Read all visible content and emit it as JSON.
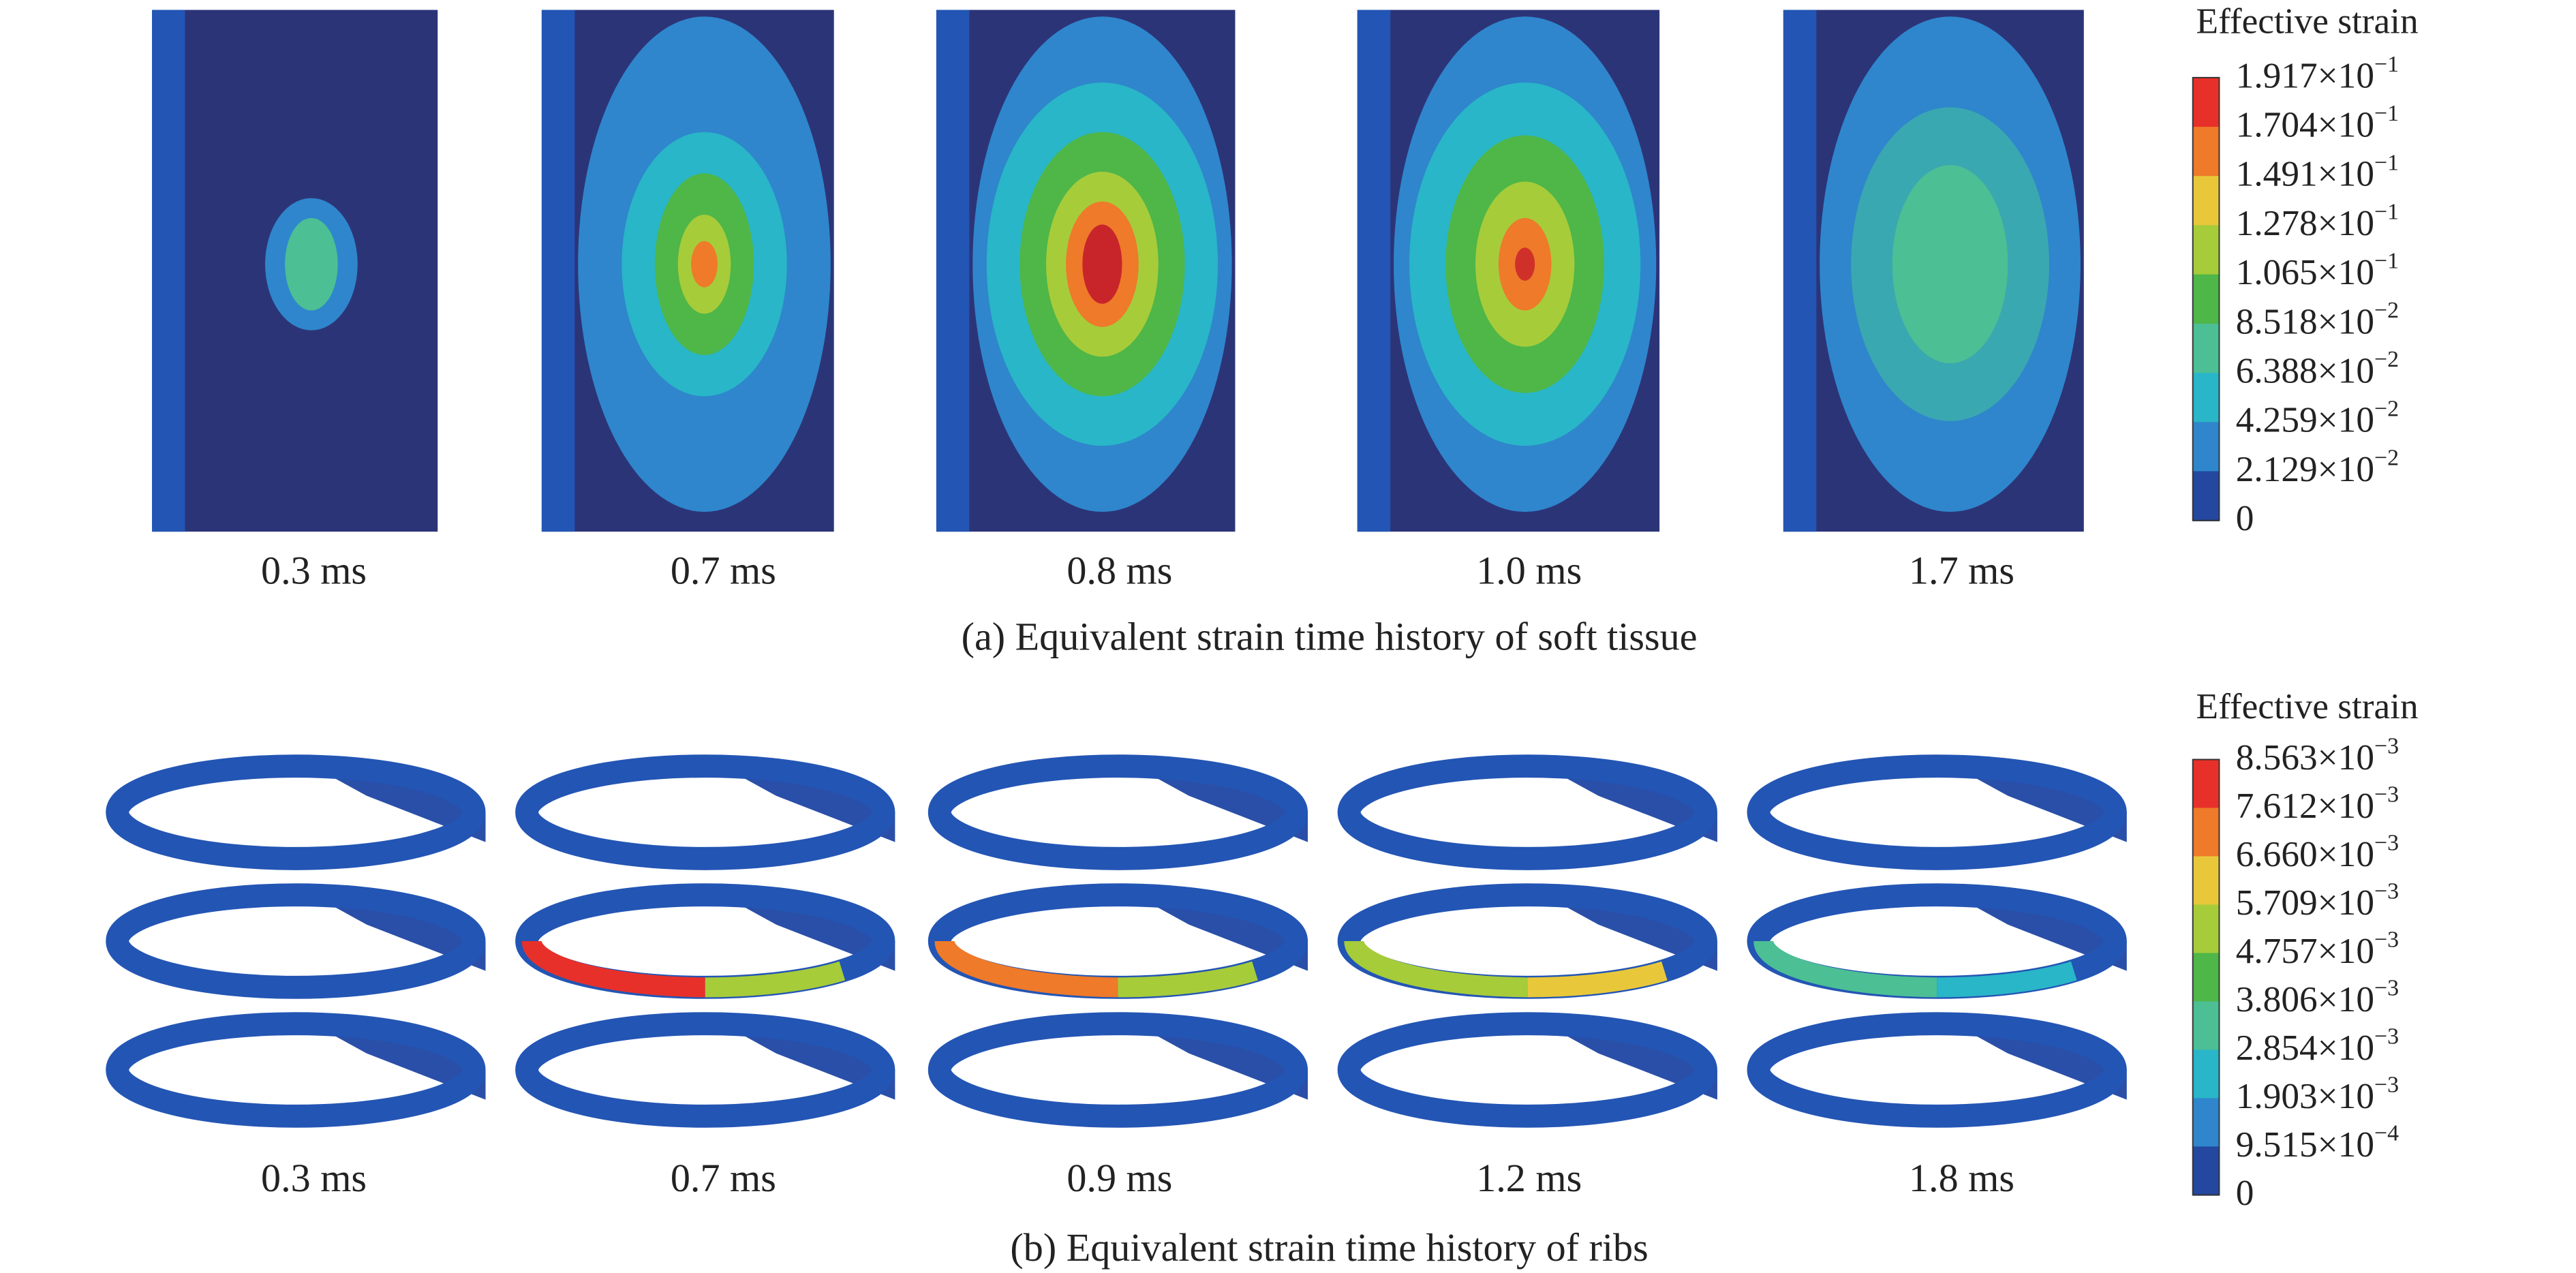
{
  "panels": [
    {
      "times": [
        "0.3 ms",
        "0.7 ms",
        "0.8 ms",
        "1.0 ms",
        "1.7 ms"
      ],
      "caption": "(a) Equivalent strain time history of soft tissue",
      "legend": {
        "title": "Effective strain",
        "labels": [
          {
            "mantissa": "1.917×10",
            "exponent": "−1"
          },
          {
            "mantissa": "1.704×10",
            "exponent": "−1"
          },
          {
            "mantissa": "1.491×10",
            "exponent": "−1"
          },
          {
            "mantissa": "1.278×10",
            "exponent": "−1"
          },
          {
            "mantissa": "1.065×10",
            "exponent": "−1"
          },
          {
            "mantissa": "8.518×10",
            "exponent": "−2"
          },
          {
            "mantissa": "6.388×10",
            "exponent": "−2"
          },
          {
            "mantissa": "4.259×10",
            "exponent": "−2"
          },
          {
            "mantissa": "2.129×10",
            "exponent": "−2"
          },
          {
            "mantissa": "0"
          }
        ]
      }
    },
    {
      "times": [
        "0.3 ms",
        "0.7 ms",
        "0.9 ms",
        "1.2 ms",
        "1.8 ms"
      ],
      "caption": "(b) Equivalent strain time history of ribs",
      "legend": {
        "title": "Effective strain",
        "labels": [
          {
            "mantissa": "8.563×10",
            "exponent": "−3"
          },
          {
            "mantissa": "7.612×10",
            "exponent": "−3"
          },
          {
            "mantissa": "6.660×10",
            "exponent": "−3"
          },
          {
            "mantissa": "5.709×10",
            "exponent": "−3"
          },
          {
            "mantissa": "4.757×10",
            "exponent": "−3"
          },
          {
            "mantissa": "3.806×10",
            "exponent": "−3"
          },
          {
            "mantissa": "2.854×10",
            "exponent": "−3"
          },
          {
            "mantissa": "1.903×10",
            "exponent": "−3"
          },
          {
            "mantissa": "9.515×10",
            "exponent": "−4"
          },
          {
            "mantissa": "0"
          }
        ]
      }
    }
  ]
}
